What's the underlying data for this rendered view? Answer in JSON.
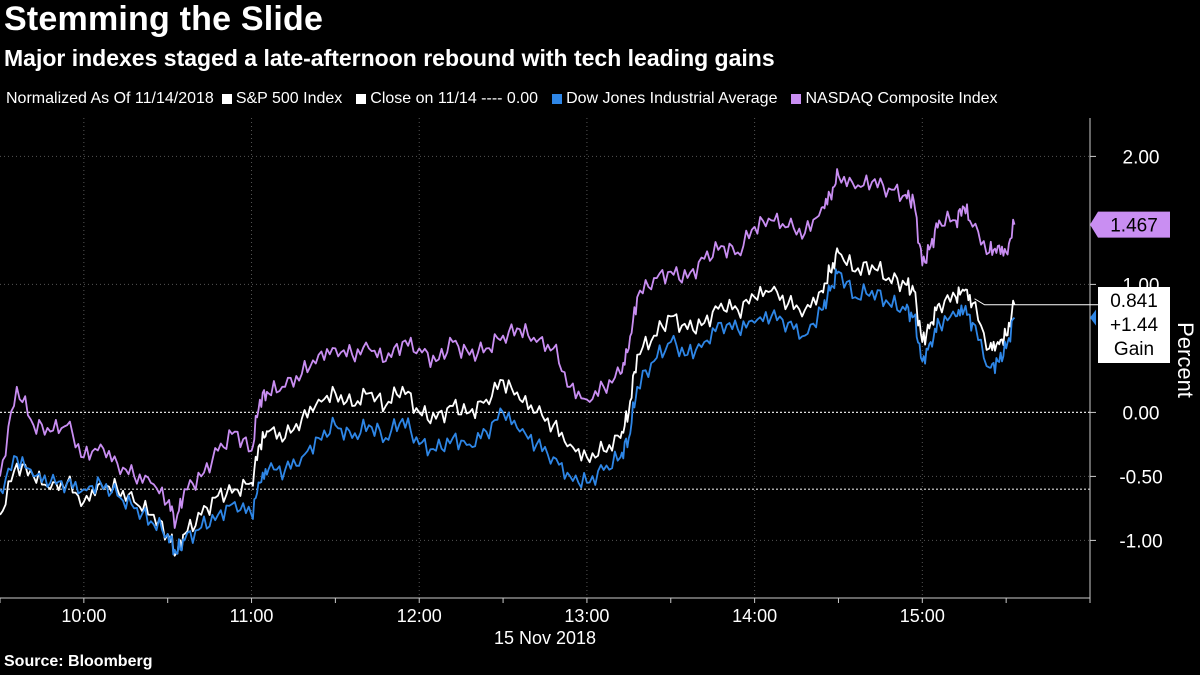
{
  "title": "Stemming the Slide",
  "subtitle": "Major indexes staged a late-afternoon rebound with tech leading gains",
  "source": "Source: Bloomberg",
  "colors": {
    "background": "#000000",
    "sp500": "#ffffff",
    "dow": "#2e86e6",
    "nasdaq": "#c98ef2",
    "grid": "#444444"
  },
  "legend": {
    "note": "Normalized As Of 11/14/2018",
    "items": [
      {
        "label": "S&P 500 Index",
        "color": "#ffffff"
      },
      {
        "label": "Close on 11/14 ---- 0.00",
        "color": "#ffffff"
      },
      {
        "label": "Dow Jones Industrial Average",
        "color": "#2e86e6"
      },
      {
        "label": "NASDAQ Composite Index",
        "color": "#c98ef2"
      }
    ]
  },
  "chart_data": {
    "type": "line",
    "title": "Stemming the Slide",
    "xlabel": "15 Nov 2018",
    "ylabel": "Percent",
    "x_ticks": [
      "10:00",
      "11:00",
      "12:00",
      "13:00",
      "14:00",
      "15:00"
    ],
    "x_tick_hours": [
      10,
      11,
      12,
      13,
      14,
      15
    ],
    "xlim_hours": [
      9.5,
      16
    ],
    "y_ticks": [
      "2.00",
      "1.00",
      "0.00",
      "-0.50",
      "-1.00"
    ],
    "y_tick_values": [
      2.0,
      1.0,
      0.0,
      -0.5,
      -1.0
    ],
    "ylim": [
      -1.45,
      2.3
    ],
    "grid": "dotted",
    "reference_lines": [
      0.0,
      -0.6
    ],
    "series": [
      {
        "name": "NASDAQ Composite Index",
        "color": "#c98ef2",
        "x": [
          9.5,
          9.6,
          9.7,
          9.8,
          9.9,
          10.0,
          10.1,
          10.2,
          10.3,
          10.4,
          10.5,
          10.55,
          10.6,
          10.7,
          10.8,
          10.9,
          11.0,
          11.05,
          11.1,
          11.2,
          11.3,
          11.4,
          11.5,
          11.6,
          11.7,
          11.8,
          11.9,
          12.0,
          12.1,
          12.2,
          12.3,
          12.4,
          12.5,
          12.6,
          12.7,
          12.8,
          12.9,
          13.0,
          13.1,
          13.2,
          13.25,
          13.3,
          13.4,
          13.5,
          13.6,
          13.7,
          13.8,
          13.9,
          14.0,
          14.1,
          14.2,
          14.3,
          14.4,
          14.45,
          14.5,
          14.6,
          14.7,
          14.8,
          14.9,
          14.95,
          15.0,
          15.05,
          15.1,
          15.2,
          15.25,
          15.3,
          15.4,
          15.45,
          15.5,
          15.55
        ],
        "values": [
          -0.5,
          0.2,
          -0.1,
          -0.15,
          -0.1,
          -0.35,
          -0.25,
          -0.4,
          -0.5,
          -0.55,
          -0.7,
          -0.85,
          -0.6,
          -0.5,
          -0.3,
          -0.15,
          -0.3,
          0.1,
          0.15,
          0.2,
          0.3,
          0.45,
          0.5,
          0.45,
          0.5,
          0.4,
          0.55,
          0.5,
          0.4,
          0.55,
          0.45,
          0.5,
          0.6,
          0.65,
          0.55,
          0.5,
          0.2,
          0.1,
          0.2,
          0.3,
          0.5,
          0.9,
          1.05,
          1.1,
          1.05,
          1.2,
          1.3,
          1.25,
          1.45,
          1.5,
          1.45,
          1.4,
          1.6,
          1.7,
          1.85,
          1.75,
          1.8,
          1.75,
          1.7,
          1.65,
          1.15,
          1.3,
          1.5,
          1.5,
          1.6,
          1.45,
          1.25,
          1.3,
          1.25,
          1.467
        ]
      },
      {
        "name": "S&P 500 Index",
        "color": "#ffffff",
        "x": [
          9.5,
          9.6,
          9.7,
          9.8,
          9.9,
          10.0,
          10.1,
          10.2,
          10.3,
          10.4,
          10.5,
          10.55,
          10.6,
          10.7,
          10.8,
          10.9,
          11.0,
          11.05,
          11.1,
          11.2,
          11.3,
          11.4,
          11.5,
          11.6,
          11.7,
          11.8,
          11.9,
          12.0,
          12.1,
          12.2,
          12.3,
          12.4,
          12.5,
          12.6,
          12.7,
          12.8,
          12.9,
          13.0,
          13.1,
          13.2,
          13.25,
          13.3,
          13.4,
          13.5,
          13.6,
          13.7,
          13.8,
          13.9,
          14.0,
          14.1,
          14.2,
          14.3,
          14.4,
          14.45,
          14.5,
          14.6,
          14.7,
          14.8,
          14.9,
          14.95,
          15.0,
          15.05,
          15.1,
          15.2,
          15.25,
          15.3,
          15.4,
          15.45,
          15.5,
          15.55
        ],
        "values": [
          -0.8,
          -0.4,
          -0.5,
          -0.6,
          -0.55,
          -0.7,
          -0.55,
          -0.6,
          -0.7,
          -0.8,
          -0.95,
          -1.1,
          -0.95,
          -0.8,
          -0.65,
          -0.6,
          -0.55,
          -0.25,
          -0.15,
          -0.2,
          -0.05,
          0.1,
          0.15,
          0.05,
          0.15,
          0.05,
          0.2,
          0.0,
          -0.05,
          0.05,
          0.0,
          0.1,
          0.25,
          0.1,
          0.0,
          -0.1,
          -0.25,
          -0.35,
          -0.3,
          -0.2,
          0.0,
          0.45,
          0.6,
          0.75,
          0.65,
          0.7,
          0.85,
          0.8,
          0.9,
          0.95,
          0.85,
          0.8,
          0.95,
          1.1,
          1.25,
          1.1,
          1.15,
          1.05,
          1.0,
          0.95,
          0.55,
          0.7,
          0.85,
          0.9,
          0.95,
          0.85,
          0.5,
          0.55,
          0.6,
          0.841
        ]
      },
      {
        "name": "Dow Jones Industrial Average",
        "color": "#2e86e6",
        "x": [
          9.5,
          9.6,
          9.7,
          9.8,
          9.9,
          10.0,
          10.1,
          10.2,
          10.3,
          10.4,
          10.5,
          10.55,
          10.6,
          10.7,
          10.8,
          10.9,
          11.0,
          11.05,
          11.1,
          11.2,
          11.3,
          11.4,
          11.5,
          11.6,
          11.7,
          11.8,
          11.9,
          12.0,
          12.1,
          12.2,
          12.3,
          12.4,
          12.5,
          12.6,
          12.7,
          12.8,
          12.9,
          13.0,
          13.1,
          13.2,
          13.25,
          13.3,
          13.4,
          13.5,
          13.6,
          13.7,
          13.8,
          13.9,
          14.0,
          14.1,
          14.2,
          14.3,
          14.4,
          14.45,
          14.5,
          14.6,
          14.7,
          14.8,
          14.9,
          14.95,
          15.0,
          15.05,
          15.1,
          15.2,
          15.25,
          15.3,
          15.4,
          15.45,
          15.5,
          15.55
        ],
        "values": [
          -0.6,
          -0.35,
          -0.5,
          -0.55,
          -0.55,
          -0.6,
          -0.55,
          -0.65,
          -0.75,
          -0.85,
          -0.95,
          -1.1,
          -1.0,
          -0.9,
          -0.8,
          -0.7,
          -0.8,
          -0.55,
          -0.45,
          -0.45,
          -0.35,
          -0.2,
          -0.1,
          -0.2,
          -0.1,
          -0.2,
          -0.05,
          -0.25,
          -0.3,
          -0.2,
          -0.25,
          -0.15,
          0.0,
          -0.15,
          -0.25,
          -0.35,
          -0.5,
          -0.55,
          -0.45,
          -0.35,
          -0.2,
          0.2,
          0.4,
          0.55,
          0.45,
          0.55,
          0.7,
          0.65,
          0.7,
          0.75,
          0.7,
          0.6,
          0.8,
          0.95,
          1.1,
          0.9,
          0.95,
          0.85,
          0.8,
          0.75,
          0.4,
          0.55,
          0.7,
          0.75,
          0.8,
          0.7,
          0.35,
          0.4,
          0.5,
          0.74
        ]
      }
    ],
    "end_labels": [
      {
        "series": "NASDAQ Composite Index",
        "text": "1.467"
      },
      {
        "series": "S&P 500 Index",
        "text": "0.841"
      }
    ],
    "annotation": [
      "+1.44",
      "Gain"
    ]
  }
}
